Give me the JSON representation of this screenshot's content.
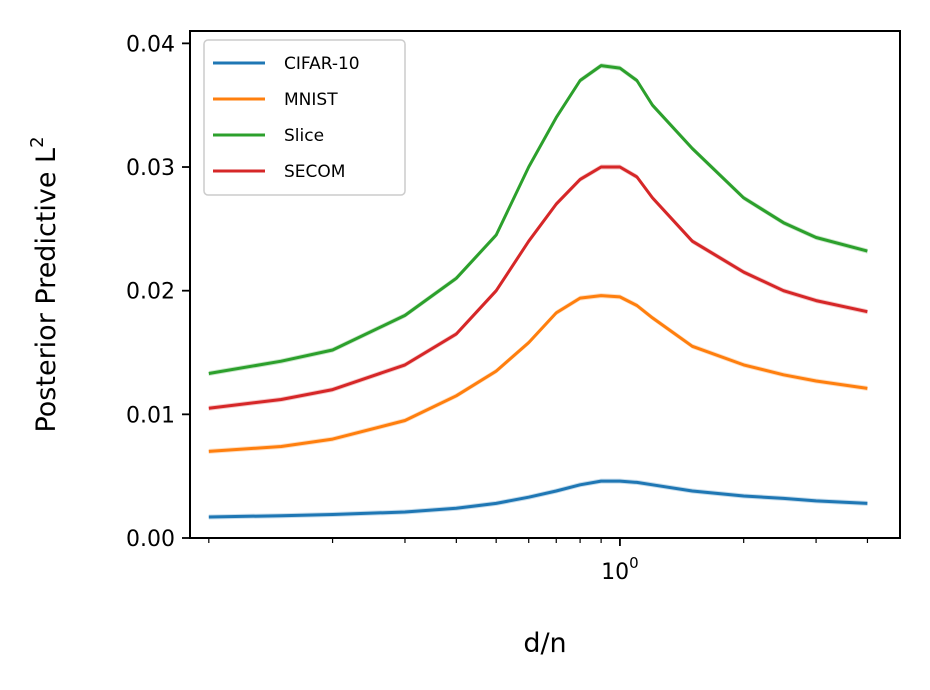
{
  "chart_data": {
    "type": "line",
    "xlabel": "d/n",
    "ylabel": "Posterior Predictive L",
    "ylabel_superscript": "2",
    "xscale": "log",
    "xlim": [
      0.09,
      4.8
    ],
    "ylim": [
      0.0,
      0.041
    ],
    "y_ticks": [
      0.0,
      0.01,
      0.02,
      0.03,
      0.04
    ],
    "y_tick_labels": [
      "0.00",
      "0.01",
      "0.02",
      "0.03",
      "0.04"
    ],
    "x_major_ticks": [
      1
    ],
    "x_major_tick_labels": [
      {
        "base": "10",
        "exp": "0"
      }
    ],
    "x_minor_ticks": [
      0.1,
      0.2,
      0.3,
      0.4,
      0.5,
      0.6,
      0.7,
      0.8,
      0.9,
      2,
      3,
      4
    ],
    "grid": false,
    "legend_position": "top-left",
    "x": [
      0.1,
      0.15,
      0.2,
      0.3,
      0.4,
      0.5,
      0.6,
      0.7,
      0.8,
      0.9,
      1.0,
      1.1,
      1.2,
      1.5,
      2.0,
      2.5,
      3.0,
      4.0
    ],
    "series": [
      {
        "name": "CIFAR-10",
        "color": "#1f77b4",
        "values": [
          0.0017,
          0.0018,
          0.0019,
          0.0021,
          0.0024,
          0.0028,
          0.0033,
          0.0038,
          0.0043,
          0.0046,
          0.0046,
          0.0045,
          0.0043,
          0.0038,
          0.0034,
          0.0032,
          0.003,
          0.0028
        ]
      },
      {
        "name": "MNIST",
        "color": "#ff7f0e",
        "values": [
          0.007,
          0.0074,
          0.008,
          0.0095,
          0.0115,
          0.0135,
          0.0158,
          0.0182,
          0.0194,
          0.0196,
          0.0195,
          0.0188,
          0.0178,
          0.0155,
          0.014,
          0.0132,
          0.0127,
          0.0121
        ]
      },
      {
        "name": "Slice",
        "color": "#2ca02c",
        "values": [
          0.0133,
          0.0143,
          0.0152,
          0.018,
          0.021,
          0.0245,
          0.03,
          0.034,
          0.037,
          0.0382,
          0.038,
          0.037,
          0.035,
          0.0315,
          0.0275,
          0.0255,
          0.0243,
          0.0232
        ]
      },
      {
        "name": "SECOM",
        "color": "#d62728",
        "values": [
          0.0105,
          0.0112,
          0.012,
          0.014,
          0.0165,
          0.02,
          0.024,
          0.027,
          0.029,
          0.03,
          0.03,
          0.0292,
          0.0275,
          0.024,
          0.0215,
          0.02,
          0.0192,
          0.0183
        ]
      }
    ]
  }
}
